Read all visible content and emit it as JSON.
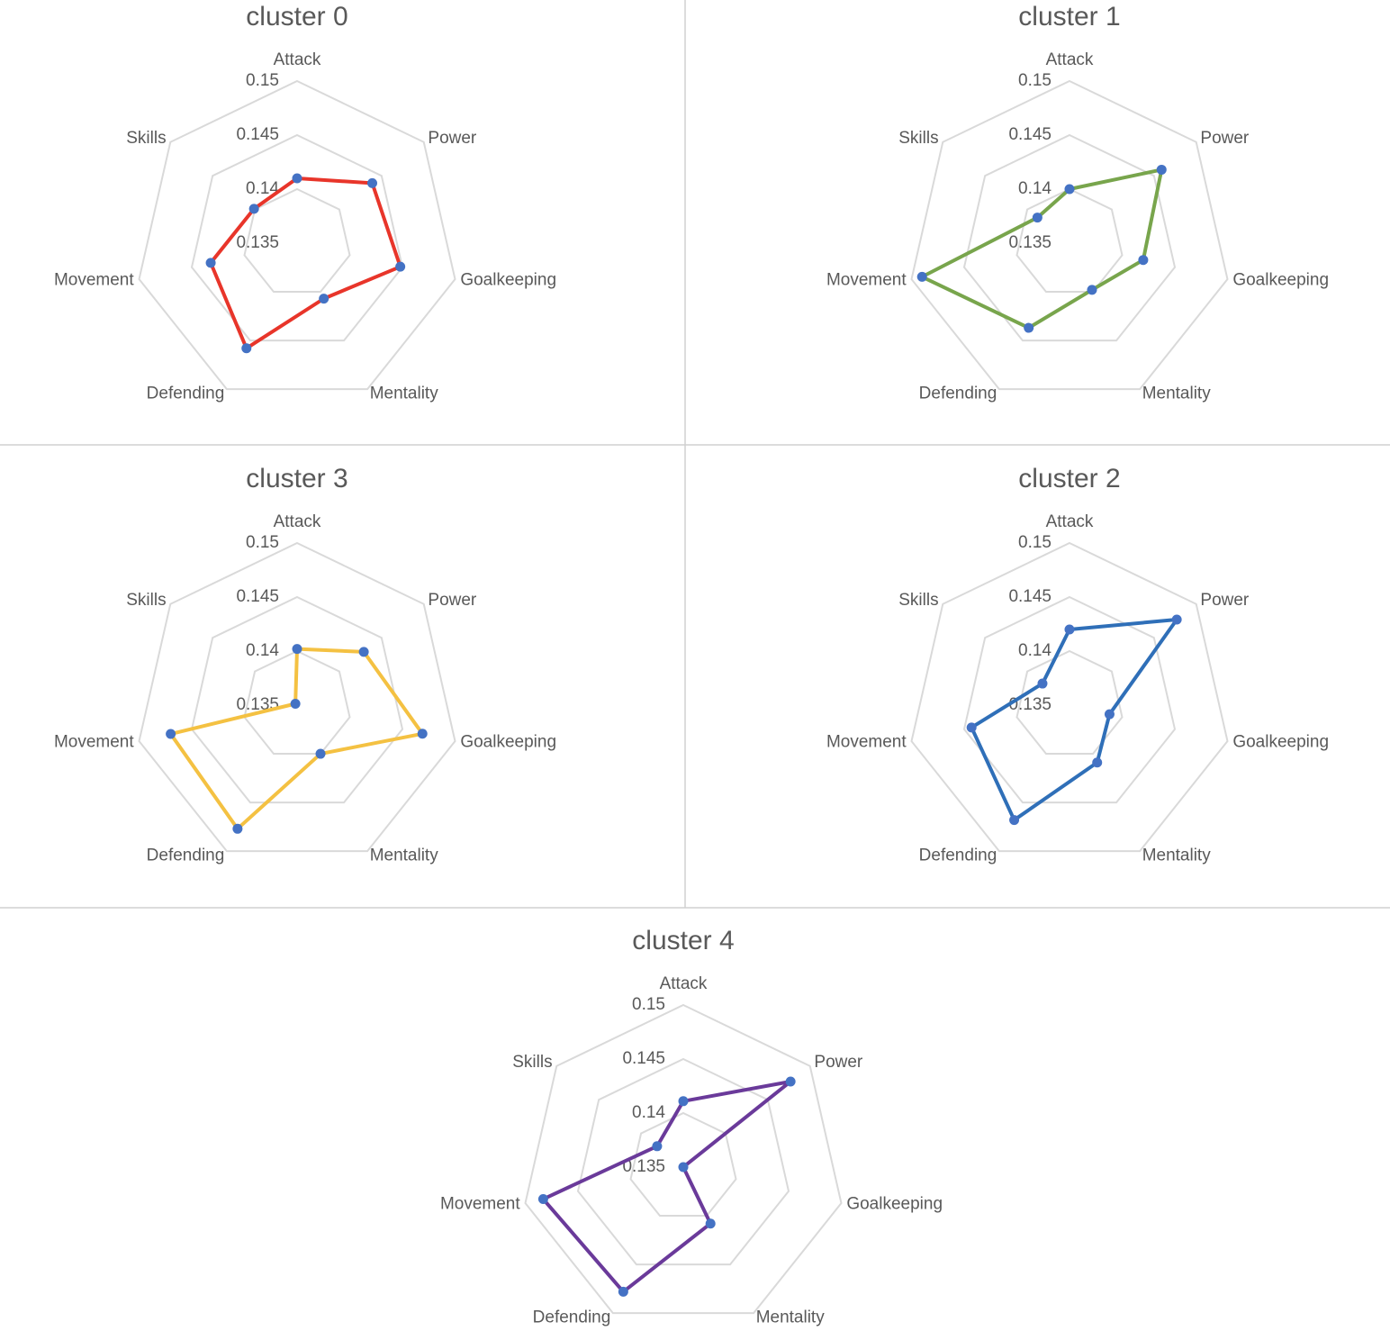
{
  "chart_data": [
    {
      "type": "radar",
      "title": "cluster 0",
      "categories": [
        "Attack",
        "Power",
        "Goalkeeping",
        "Mentality",
        "Defending",
        "Movement",
        "Skills"
      ],
      "values": [
        0.141,
        0.1439,
        0.1448,
        0.1407,
        0.1458,
        0.1432,
        0.1401
      ],
      "color": "#e8352a",
      "marker_color": "#4472c4",
      "ylim": [
        0.135,
        0.15
      ],
      "yticks": [
        0.135,
        0.14,
        0.145,
        0.15
      ]
    },
    {
      "type": "radar",
      "title": "cluster 1",
      "categories": [
        "Attack",
        "Power",
        "Goalkeeping",
        "Mentality",
        "Defending",
        "Movement",
        "Skills"
      ],
      "values": [
        0.14,
        0.1459,
        0.142,
        0.1398,
        0.1437,
        0.149,
        0.1388
      ],
      "color": "#78a54c",
      "marker_color": "#4472c4",
      "ylim": [
        0.135,
        0.15
      ],
      "yticks": [
        0.135,
        0.14,
        0.145,
        0.15
      ]
    },
    {
      "type": "radar",
      "title": "cluster 3",
      "categories": [
        "Attack",
        "Power",
        "Goalkeeping",
        "Mentality",
        "Defending",
        "Movement",
        "Skills"
      ],
      "values": [
        0.1402,
        0.1429,
        0.1469,
        0.14,
        0.1477,
        0.147,
        0.1352
      ],
      "color": "#f4c142",
      "marker_color": "#4472c4",
      "ylim": [
        0.135,
        0.15
      ],
      "yticks": [
        0.135,
        0.14,
        0.145,
        0.15
      ]
    },
    {
      "type": "radar",
      "title": "cluster 2",
      "categories": [
        "Attack",
        "Power",
        "Goalkeeping",
        "Mentality",
        "Defending",
        "Movement",
        "Skills"
      ],
      "values": [
        0.142,
        0.1477,
        0.1388,
        0.1409,
        0.1468,
        0.1443,
        0.1382
      ],
      "color": "#2f6fb8",
      "marker_color": "#4472c4",
      "ylim": [
        0.135,
        0.15
      ],
      "yticks": [
        0.135,
        0.14,
        0.145,
        0.15
      ]
    },
    {
      "type": "radar",
      "title": "cluster 4",
      "categories": [
        "Attack",
        "Power",
        "Goalkeeping",
        "Mentality",
        "Defending",
        "Movement",
        "Skills"
      ],
      "values": [
        0.1411,
        0.1477,
        0.135,
        0.1408,
        0.1478,
        0.1483,
        0.1381
      ],
      "color": "#6a3a9a",
      "marker_color": "#4472c4",
      "ylim": [
        0.135,
        0.15
      ],
      "yticks": [
        0.135,
        0.14,
        0.145,
        0.15
      ]
    }
  ]
}
